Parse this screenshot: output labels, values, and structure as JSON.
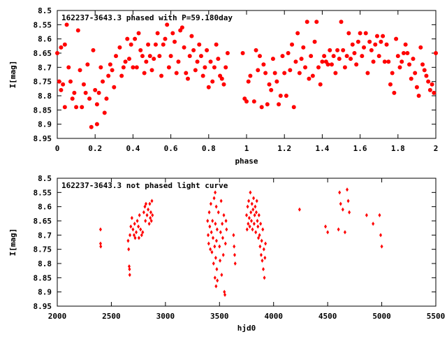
{
  "chart_data": [
    {
      "type": "scatter",
      "title": "162237-3643.3 phased with P=59.180day",
      "xlabel": "phase",
      "ylabel": "I[mag]",
      "xlim": [
        0,
        2
      ],
      "ylim": [
        8.95,
        8.5
      ],
      "y_inverted": true,
      "grid": false,
      "marker": "filled-circle",
      "color": "#ff0000",
      "xticks": [
        0,
        0.2,
        0.4,
        0.6,
        0.8,
        1,
        1.2,
        1.4,
        1.6,
        1.8,
        2
      ],
      "xtick_labels": [
        "0",
        "0.2",
        "0.4",
        "0.6",
        "0.8",
        "1",
        "1.2",
        "1.4",
        "1.6",
        "1.8",
        "2"
      ],
      "yticks": [
        8.5,
        8.55,
        8.6,
        8.65,
        8.7,
        8.75,
        8.8,
        8.85,
        8.9,
        8.95
      ],
      "ytick_labels": [
        "8.5",
        "8.55",
        "8.6",
        "8.65",
        "8.7",
        "8.75",
        "8.8",
        "8.85",
        "8.9",
        "8.95"
      ],
      "points": [
        [
          0.0,
          8.65
        ],
        [
          0.01,
          8.75
        ],
        [
          0.02,
          8.63
        ],
        [
          0.02,
          8.78
        ],
        [
          0.03,
          8.76
        ],
        [
          0.04,
          8.62
        ],
        [
          0.04,
          8.84
        ],
        [
          0.05,
          8.55
        ],
        [
          0.06,
          8.7
        ],
        [
          0.07,
          8.75
        ],
        [
          0.08,
          8.81
        ],
        [
          0.09,
          8.79
        ],
        [
          0.1,
          8.84
        ],
        [
          0.11,
          8.57
        ],
        [
          0.12,
          8.71
        ],
        [
          0.13,
          8.84
        ],
        [
          0.14,
          8.76
        ],
        [
          0.15,
          8.79
        ],
        [
          0.16,
          8.69
        ],
        [
          0.17,
          8.81
        ],
        [
          0.18,
          8.91
        ],
        [
          0.19,
          8.64
        ],
        [
          0.2,
          8.78
        ],
        [
          0.21,
          8.83
        ],
        [
          0.21,
          8.9
        ],
        [
          0.22,
          8.79
        ],
        [
          0.23,
          8.7
        ],
        [
          0.24,
          8.75
        ],
        [
          0.25,
          8.86
        ],
        [
          0.26,
          8.81
        ],
        [
          0.27,
          8.73
        ],
        [
          0.28,
          8.69
        ],
        [
          0.29,
          8.71
        ],
        [
          0.3,
          8.77
        ],
        [
          0.31,
          8.66
        ],
        [
          0.33,
          8.63
        ],
        [
          0.34,
          8.73
        ],
        [
          0.35,
          8.7
        ],
        [
          0.36,
          8.68
        ],
        [
          0.37,
          8.6
        ],
        [
          0.38,
          8.67
        ],
        [
          0.39,
          8.62
        ],
        [
          0.4,
          8.7
        ],
        [
          0.41,
          8.6
        ],
        [
          0.42,
          8.7
        ],
        [
          0.43,
          8.58
        ],
        [
          0.44,
          8.64
        ],
        [
          0.45,
          8.66
        ],
        [
          0.46,
          8.72
        ],
        [
          0.47,
          8.68
        ],
        [
          0.48,
          8.62
        ],
        [
          0.49,
          8.66
        ],
        [
          0.5,
          8.71
        ],
        [
          0.51,
          8.67
        ],
        [
          0.52,
          8.62
        ],
        [
          0.53,
          8.58
        ],
        [
          0.54,
          8.66
        ],
        [
          0.55,
          8.73
        ],
        [
          0.56,
          8.62
        ],
        [
          0.57,
          8.6
        ],
        [
          0.58,
          8.55
        ],
        [
          0.59,
          8.7
        ],
        [
          0.6,
          8.66
        ],
        [
          0.61,
          8.58
        ],
        [
          0.62,
          8.61
        ],
        [
          0.63,
          8.72
        ],
        [
          0.64,
          8.68
        ],
        [
          0.65,
          8.57
        ],
        [
          0.66,
          8.56
        ],
        [
          0.67,
          8.63
        ],
        [
          0.68,
          8.72
        ],
        [
          0.69,
          8.74
        ],
        [
          0.7,
          8.66
        ],
        [
          0.71,
          8.59
        ],
        [
          0.72,
          8.64
        ],
        [
          0.73,
          8.71
        ],
        [
          0.74,
          8.68
        ],
        [
          0.75,
          8.62
        ],
        [
          0.76,
          8.66
        ],
        [
          0.77,
          8.73
        ],
        [
          0.78,
          8.7
        ],
        [
          0.79,
          8.64
        ],
        [
          0.8,
          8.77
        ],
        [
          0.81,
          8.68
        ],
        [
          0.82,
          8.75
        ],
        [
          0.83,
          8.7
        ],
        [
          0.84,
          8.62
        ],
        [
          0.85,
          8.67
        ],
        [
          0.86,
          8.73
        ],
        [
          0.87,
          8.74
        ],
        [
          0.88,
          8.76
        ],
        [
          0.89,
          8.7
        ],
        [
          0.9,
          8.65
        ],
        [
          0.98,
          8.65
        ],
        [
          0.99,
          8.81
        ],
        [
          1.0,
          8.82
        ],
        [
          1.01,
          8.75
        ],
        [
          1.02,
          8.73
        ],
        [
          1.04,
          8.82
        ],
        [
          1.05,
          8.64
        ],
        [
          1.06,
          8.71
        ],
        [
          1.07,
          8.66
        ],
        [
          1.08,
          8.84
        ],
        [
          1.09,
          8.69
        ],
        [
          1.1,
          8.72
        ],
        [
          1.11,
          8.83
        ],
        [
          1.12,
          8.76
        ],
        [
          1.13,
          8.78
        ],
        [
          1.14,
          8.67
        ],
        [
          1.15,
          8.72
        ],
        [
          1.16,
          8.75
        ],
        [
          1.17,
          8.83
        ],
        [
          1.18,
          8.8
        ],
        [
          1.19,
          8.66
        ],
        [
          1.2,
          8.72
        ],
        [
          1.21,
          8.8
        ],
        [
          1.22,
          8.65
        ],
        [
          1.23,
          8.71
        ],
        [
          1.24,
          8.62
        ],
        [
          1.25,
          8.84
        ],
        [
          1.26,
          8.68
        ],
        [
          1.27,
          8.58
        ],
        [
          1.28,
          8.72
        ],
        [
          1.29,
          8.67
        ],
        [
          1.3,
          8.63
        ],
        [
          1.31,
          8.7
        ],
        [
          1.32,
          8.54
        ],
        [
          1.33,
          8.74
        ],
        [
          1.34,
          8.66
        ],
        [
          1.35,
          8.73
        ],
        [
          1.36,
          8.61
        ],
        [
          1.37,
          8.54
        ],
        [
          1.38,
          8.7
        ],
        [
          1.39,
          8.76
        ],
        [
          1.4,
          8.68
        ],
        [
          1.41,
          8.66
        ],
        [
          1.42,
          8.68
        ],
        [
          1.43,
          8.69
        ],
        [
          1.44,
          8.64
        ],
        [
          1.45,
          8.69
        ],
        [
          1.46,
          8.66
        ],
        [
          1.47,
          8.72
        ],
        [
          1.48,
          8.64
        ],
        [
          1.49,
          8.67
        ],
        [
          1.5,
          8.54
        ],
        [
          1.51,
          8.64
        ],
        [
          1.52,
          8.7
        ],
        [
          1.53,
          8.66
        ],
        [
          1.54,
          8.58
        ],
        [
          1.55,
          8.67
        ],
        [
          1.56,
          8.62
        ],
        [
          1.57,
          8.65
        ],
        [
          1.58,
          8.69
        ],
        [
          1.59,
          8.61
        ],
        [
          1.6,
          8.58
        ],
        [
          1.61,
          8.66
        ],
        [
          1.62,
          8.63
        ],
        [
          1.63,
          8.58
        ],
        [
          1.64,
          8.72
        ],
        [
          1.65,
          8.61
        ],
        [
          1.66,
          8.64
        ],
        [
          1.67,
          8.68
        ],
        [
          1.68,
          8.62
        ],
        [
          1.69,
          8.59
        ],
        [
          1.7,
          8.66
        ],
        [
          1.71,
          8.61
        ],
        [
          1.72,
          8.59
        ],
        [
          1.73,
          8.68
        ],
        [
          1.74,
          8.62
        ],
        [
          1.75,
          8.68
        ],
        [
          1.76,
          8.76
        ],
        [
          1.77,
          8.72
        ],
        [
          1.78,
          8.79
        ],
        [
          1.79,
          8.6
        ],
        [
          1.8,
          8.66
        ],
        [
          1.81,
          8.7
        ],
        [
          1.82,
          8.68
        ],
        [
          1.83,
          8.65
        ],
        [
          1.84,
          8.62
        ],
        [
          1.85,
          8.65
        ],
        [
          1.86,
          8.69
        ],
        [
          1.87,
          8.74
        ],
        [
          1.88,
          8.67
        ],
        [
          1.89,
          8.72
        ],
        [
          1.9,
          8.77
        ],
        [
          1.91,
          8.8
        ],
        [
          1.92,
          8.63
        ],
        [
          1.93,
          8.69
        ],
        [
          1.94,
          8.71
        ],
        [
          1.95,
          8.73
        ],
        [
          1.96,
          8.75
        ],
        [
          1.97,
          8.78
        ],
        [
          1.98,
          8.76
        ],
        [
          1.99,
          8.79
        ],
        [
          2.0,
          8.65
        ]
      ]
    },
    {
      "type": "scatter",
      "title": "162237-3643.3 not phased light curve",
      "xlabel": "hjd0",
      "ylabel": "I[mag]",
      "xlim": [
        2000,
        5500
      ],
      "ylim": [
        8.95,
        8.5
      ],
      "y_inverted": true,
      "grid": false,
      "marker": "small-diamond",
      "color": "#ff0000",
      "xticks": [
        2000,
        2500,
        3000,
        3500,
        4000,
        4500,
        5000,
        5500
      ],
      "xtick_labels": [
        "2000",
        "2500",
        "3000",
        "3500",
        "4000",
        "4500",
        "5000",
        "5500"
      ],
      "yticks": [
        8.5,
        8.55,
        8.6,
        8.65,
        8.7,
        8.75,
        8.8,
        8.85,
        8.9,
        8.95
      ],
      "ytick_labels": [
        "8.5",
        "8.55",
        "8.6",
        "8.65",
        "8.7",
        "8.75",
        "8.8",
        "8.85",
        "8.9",
        "8.95"
      ],
      "points": [
        [
          2400,
          8.68
        ],
        [
          2400,
          8.73
        ],
        [
          2402,
          8.74
        ],
        [
          2655,
          8.72
        ],
        [
          2660,
          8.75
        ],
        [
          2665,
          8.81
        ],
        [
          2668,
          8.82
        ],
        [
          2670,
          8.84
        ],
        [
          2672,
          8.7
        ],
        [
          2680,
          8.67
        ],
        [
          2690,
          8.64
        ],
        [
          2700,
          8.68
        ],
        [
          2710,
          8.7
        ],
        [
          2715,
          8.66
        ],
        [
          2720,
          8.71
        ],
        [
          2730,
          8.69
        ],
        [
          2740,
          8.65
        ],
        [
          2750,
          8.67
        ],
        [
          2755,
          8.71
        ],
        [
          2760,
          8.63
        ],
        [
          2770,
          8.68
        ],
        [
          2780,
          8.7
        ],
        [
          2790,
          8.69
        ],
        [
          2800,
          8.62
        ],
        [
          2810,
          8.6
        ],
        [
          2815,
          8.65
        ],
        [
          2820,
          8.59
        ],
        [
          2830,
          8.63
        ],
        [
          2840,
          8.61
        ],
        [
          2850,
          8.66
        ],
        [
          2855,
          8.59
        ],
        [
          2860,
          8.64
        ],
        [
          2865,
          8.62
        ],
        [
          2870,
          8.65
        ],
        [
          2875,
          8.58
        ],
        [
          2880,
          8.63
        ],
        [
          3390,
          8.65
        ],
        [
          3395,
          8.7
        ],
        [
          3400,
          8.73
        ],
        [
          3405,
          8.62
        ],
        [
          3410,
          8.67
        ],
        [
          3415,
          8.75
        ],
        [
          3420,
          8.59
        ],
        [
          3425,
          8.69
        ],
        [
          3430,
          8.76
        ],
        [
          3435,
          8.65
        ],
        [
          3440,
          8.71
        ],
        [
          3445,
          8.8
        ],
        [
          3450,
          8.57
        ],
        [
          3455,
          8.74
        ],
        [
          3458,
          8.85
        ],
        [
          3460,
          8.55
        ],
        [
          3462,
          8.66
        ],
        [
          3465,
          8.78
        ],
        [
          3468,
          8.88
        ],
        [
          3470,
          8.6
        ],
        [
          3472,
          8.72
        ],
        [
          3475,
          8.82
        ],
        [
          3478,
          8.68
        ],
        [
          3480,
          8.86
        ],
        [
          3490,
          8.62
        ],
        [
          3500,
          8.74
        ],
        [
          3505,
          8.79
        ],
        [
          3510,
          8.69
        ],
        [
          3515,
          8.58
        ],
        [
          3520,
          8.84
        ],
        [
          3525,
          8.66
        ],
        [
          3530,
          8.71
        ],
        [
          3535,
          8.77
        ],
        [
          3540,
          8.63
        ],
        [
          3545,
          8.9
        ],
        [
          3550,
          8.91
        ],
        [
          3555,
          8.73
        ],
        [
          3560,
          8.65
        ],
        [
          3565,
          8.68
        ],
        [
          3630,
          8.7
        ],
        [
          3635,
          8.74
        ],
        [
          3640,
          8.77
        ],
        [
          3645,
          8.8
        ],
        [
          3750,
          8.63
        ],
        [
          3755,
          8.68
        ],
        [
          3760,
          8.6
        ],
        [
          3765,
          8.66
        ],
        [
          3770,
          8.58
        ],
        [
          3775,
          8.64
        ],
        [
          3780,
          8.67
        ],
        [
          3785,
          8.55
        ],
        [
          3790,
          8.62
        ],
        [
          3795,
          8.65
        ],
        [
          3800,
          8.59
        ],
        [
          3805,
          8.68
        ],
        [
          3810,
          8.61
        ],
        [
          3815,
          8.57
        ],
        [
          3820,
          8.66
        ],
        [
          3825,
          8.63
        ],
        [
          3830,
          8.6
        ],
        [
          3835,
          8.69
        ],
        [
          3840,
          8.62
        ],
        [
          3845,
          8.58
        ],
        [
          3850,
          8.65
        ],
        [
          3855,
          8.67
        ],
        [
          3860,
          8.71
        ],
        [
          3865,
          8.63
        ],
        [
          3870,
          8.7
        ],
        [
          3875,
          8.74
        ],
        [
          3880,
          8.66
        ],
        [
          3885,
          8.77
        ],
        [
          3890,
          8.72
        ],
        [
          3895,
          8.79
        ],
        [
          3900,
          8.68
        ],
        [
          3905,
          8.82
        ],
        [
          3910,
          8.75
        ],
        [
          3915,
          8.85
        ],
        [
          3920,
          8.78
        ],
        [
          3925,
          8.73
        ],
        [
          4240,
          8.61
        ],
        [
          4480,
          8.67
        ],
        [
          4500,
          8.69
        ],
        [
          4600,
          8.68
        ],
        [
          4610,
          8.55
        ],
        [
          4620,
          8.59
        ],
        [
          4640,
          8.61
        ],
        [
          4660,
          8.69
        ],
        [
          4680,
          8.54
        ],
        [
          4690,
          8.58
        ],
        [
          4700,
          8.62
        ],
        [
          4860,
          8.63
        ],
        [
          4920,
          8.66
        ],
        [
          4980,
          8.63
        ],
        [
          4990,
          8.7
        ],
        [
          5000,
          8.74
        ]
      ]
    }
  ]
}
